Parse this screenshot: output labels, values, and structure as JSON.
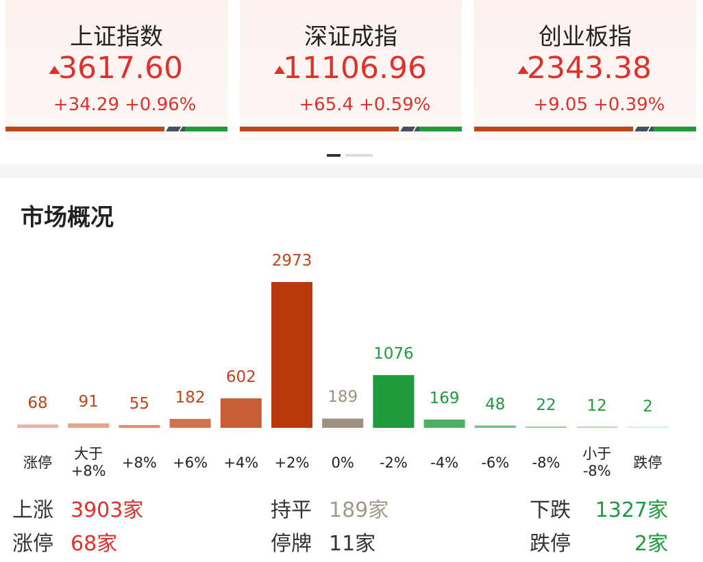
{
  "indices": [
    {
      "name": "上证指数",
      "value": "3617.60",
      "change": "+34.29",
      "percent": "+0.96%"
    },
    {
      "name": "深证成指",
      "value": "11106.96",
      "change": "+65.4",
      "percent": "+0.59%"
    },
    {
      "name": "创业板指",
      "value": "2343.38",
      "change": "+9.05",
      "percent": "+0.39%"
    }
  ],
  "chart_data": {
    "type": "bar",
    "title": "市场概况",
    "categories": [
      "涨停",
      "大于\n+8%",
      "+8%",
      "+6%",
      "+4%",
      "+2%",
      "0%",
      "-2%",
      "-4%",
      "-6%",
      "-8%",
      "小于\n-8%",
      "跌停"
    ],
    "values": [
      68,
      91,
      55,
      182,
      602,
      2973,
      189,
      1076,
      169,
      48,
      22,
      12,
      2
    ],
    "colors": [
      "#e8b4a6",
      "#e4a48e",
      "#dc8c70",
      "#d27350",
      "#c85e36",
      "#b83a0c",
      "#9b9282",
      "#1f9a3c",
      "#4caf62",
      "#6fbf80",
      "#93cfa0",
      "#b7dfbf",
      "#d6eedb"
    ],
    "label_colors": [
      "#c0441a",
      "#c0441a",
      "#c0441a",
      "#c0441a",
      "#c0441a",
      "#c0441a",
      "#9b9282",
      "#1f9a3c",
      "#1f9a3c",
      "#1f9a3c",
      "#1f9a3c",
      "#1f9a3c",
      "#1f9a3c"
    ]
  },
  "summary": [
    {
      "label": "上涨",
      "text": "3903家",
      "color": "#e0302a"
    },
    {
      "label": "持平",
      "text": "189家",
      "color": "#a09a8a"
    },
    {
      "label": "下跌",
      "text": "1327家",
      "color": "#1f9a3c"
    },
    {
      "label": "涨停",
      "text": "68家",
      "color": "#e0302a"
    },
    {
      "label": "停牌",
      "text": "11家",
      "color": "#333333"
    },
    {
      "label": "跌停",
      "text": "2家",
      "color": "#1f9a3c"
    }
  ]
}
